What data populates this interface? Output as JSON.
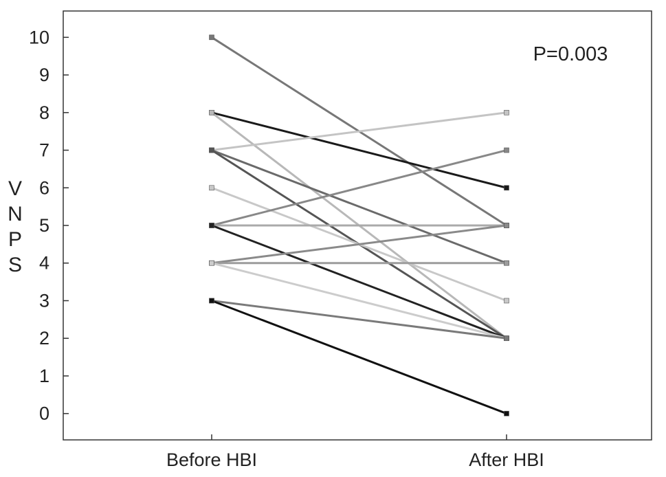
{
  "chart_data": {
    "type": "line",
    "categories": [
      "Before HBI",
      "After HBI"
    ],
    "ylabel_letters": [
      "V",
      "N",
      "P",
      "S"
    ],
    "ylim": [
      -0.7,
      10.7
    ],
    "yticks": [
      0,
      1,
      2,
      3,
      4,
      5,
      6,
      7,
      8,
      9,
      10
    ],
    "annotation": "P=0.003",
    "grid": false,
    "series": [
      {
        "values": [
          10,
          5
        ],
        "color": "#777777"
      },
      {
        "values": [
          8,
          6
        ],
        "color": "#1a1a1a"
      },
      {
        "values": [
          8,
          2
        ],
        "color": "#b8b8b8"
      },
      {
        "values": [
          7,
          8
        ],
        "color": "#c4c4c4"
      },
      {
        "values": [
          7,
          4
        ],
        "color": "#6a6a6a"
      },
      {
        "values": [
          7,
          2
        ],
        "color": "#555555"
      },
      {
        "values": [
          6,
          3
        ],
        "color": "#c8c8c8"
      },
      {
        "values": [
          5,
          7
        ],
        "color": "#888888"
      },
      {
        "values": [
          5,
          5
        ],
        "color": "#aaaaaa"
      },
      {
        "values": [
          5,
          2
        ],
        "color": "#222222"
      },
      {
        "values": [
          4,
          5
        ],
        "color": "#8a8a8a"
      },
      {
        "values": [
          4,
          4
        ],
        "color": "#9c9c9c"
      },
      {
        "values": [
          4,
          2
        ],
        "color": "#cccccc"
      },
      {
        "values": [
          3,
          2
        ],
        "color": "#7a7a7a"
      },
      {
        "values": [
          3,
          0
        ],
        "color": "#111111"
      }
    ]
  }
}
